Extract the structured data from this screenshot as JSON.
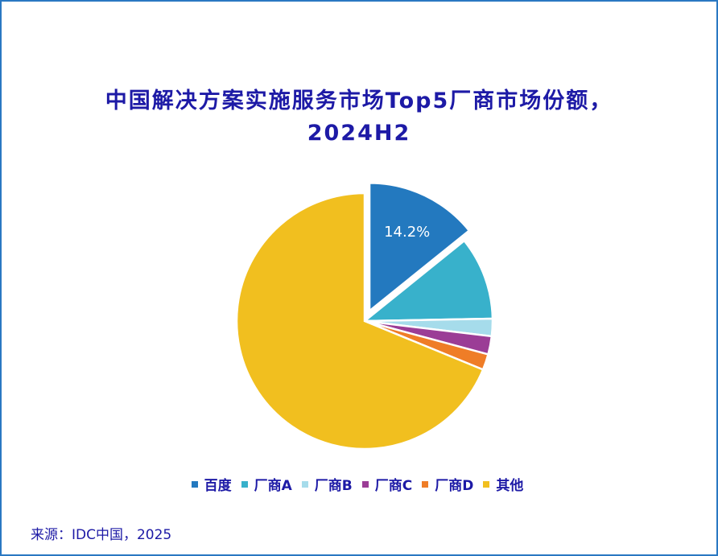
{
  "chart_data": {
    "type": "pie",
    "title_lines": [
      "中国解决方案实施服务市场Top5厂商市场份额，",
      "2024H2"
    ],
    "slices": [
      {
        "label": "百度",
        "value": 14.2,
        "color": "#2379bf",
        "exploded": true,
        "data_label": "14.2%"
      },
      {
        "label": "厂商A",
        "value": 10.5,
        "color": "#38b1cb"
      },
      {
        "label": "厂商B",
        "value": 2.2,
        "color": "#a6dceb"
      },
      {
        "label": "厂商C",
        "value": 2.3,
        "color": "#9b3d96"
      },
      {
        "label": "厂商D",
        "value": 2.0,
        "color": "#ef7d27"
      },
      {
        "label": "其他",
        "value": 68.8,
        "color": "#f1bf1f"
      }
    ],
    "legend_position": "bottom"
  },
  "source": "来源：IDC中国，2025"
}
